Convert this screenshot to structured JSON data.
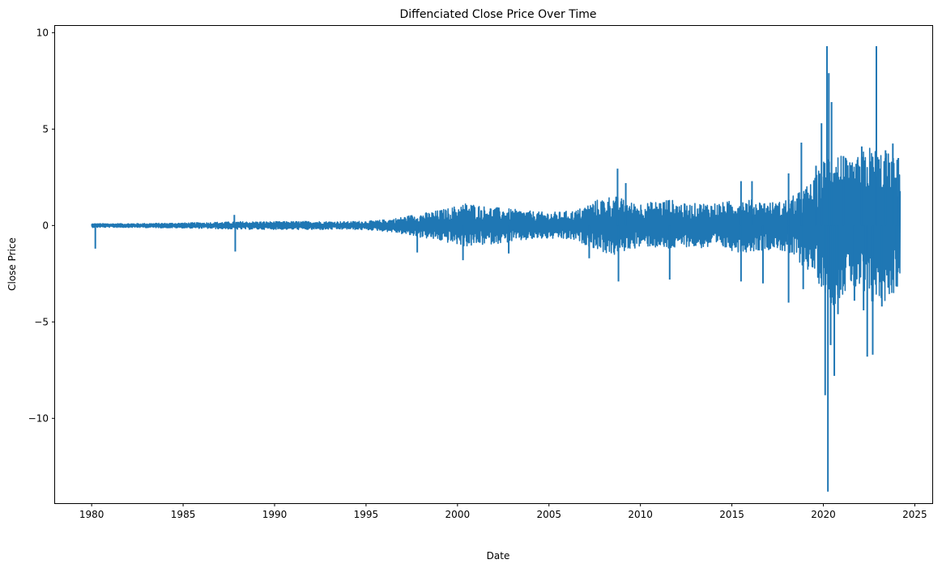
{
  "chart_data": {
    "type": "line",
    "title": "Diffenciated Close Price Over Time",
    "xlabel": "Date",
    "ylabel": "Close Price",
    "xlim": [
      1978.0,
      2026.0
    ],
    "ylim": [
      -14.4,
      10.35
    ],
    "x_ticks": [
      1980,
      1985,
      1990,
      1995,
      2000,
      2005,
      2010,
      2015,
      2020,
      2025
    ],
    "y_ticks": [
      10,
      5,
      0,
      -5,
      -10
    ],
    "y_tick_labels": [
      "10",
      "5",
      "0",
      "−5",
      "−10"
    ],
    "grid": false,
    "legend": "none",
    "series": [
      {
        "color": "#1f77b4",
        "envelope": {
          "x": [
            1980.0,
            1982.0,
            1984.0,
            1986.0,
            1988.0,
            1990.0,
            1992.0,
            1994.0,
            1995.5,
            1996.5,
            1997.5,
            1998.5,
            1999.5,
            2000.5,
            2001.5,
            2002.5,
            2003.5,
            2004.5,
            2005.5,
            2006.5,
            2007.5,
            2008.5,
            2009.5,
            2010.5,
            2011.5,
            2012.5,
            2013.5,
            2014.5,
            2015.5,
            2016.5,
            2017.5,
            2018.5,
            2019.5,
            2020.5,
            2021.5,
            2022.5,
            2023.5,
            2024.2
          ],
          "upper": [
            0.1,
            0.1,
            0.12,
            0.15,
            0.2,
            0.2,
            0.22,
            0.2,
            0.25,
            0.35,
            0.55,
            0.7,
            0.9,
            1.2,
            1.0,
            0.9,
            0.8,
            0.7,
            0.7,
            0.8,
            1.3,
            1.6,
            1.2,
            1.2,
            1.4,
            1.1,
            1.2,
            1.2,
            1.4,
            1.3,
            1.2,
            1.6,
            2.4,
            4.4,
            3.2,
            4.2,
            3.8,
            3.4
          ],
          "lower": [
            -0.1,
            -0.1,
            -0.12,
            -0.15,
            -0.2,
            -0.2,
            -0.22,
            -0.2,
            -0.25,
            -0.35,
            -0.55,
            -0.7,
            -0.9,
            -1.1,
            -1.0,
            -0.9,
            -0.8,
            -0.7,
            -0.7,
            -0.8,
            -1.2,
            -1.6,
            -1.2,
            -1.1,
            -1.3,
            -1.1,
            -1.2,
            -1.2,
            -1.4,
            -1.3,
            -1.2,
            -1.8,
            -2.6,
            -4.2,
            -3.2,
            -4.3,
            -3.9,
            -3.2
          ]
        },
        "spikes": [
          {
            "x": 1980.2,
            "y": -1.2
          },
          {
            "x": 1987.8,
            "y": 0.55
          },
          {
            "x": 1987.85,
            "y": -1.35
          },
          {
            "x": 1997.8,
            "y": -1.4
          },
          {
            "x": 2000.3,
            "y": -1.8
          },
          {
            "x": 2002.8,
            "y": -1.45
          },
          {
            "x": 2007.2,
            "y": -1.7
          },
          {
            "x": 2008.75,
            "y": 2.95
          },
          {
            "x": 2008.8,
            "y": -2.9
          },
          {
            "x": 2009.2,
            "y": 2.2
          },
          {
            "x": 2011.6,
            "y": -2.8
          },
          {
            "x": 2015.5,
            "y": -2.9
          },
          {
            "x": 2015.5,
            "y": 2.3
          },
          {
            "x": 2016.1,
            "y": 2.3
          },
          {
            "x": 2016.7,
            "y": -3.0
          },
          {
            "x": 2018.1,
            "y": -4.0
          },
          {
            "x": 2018.1,
            "y": 2.7
          },
          {
            "x": 2018.8,
            "y": 4.3
          },
          {
            "x": 2018.9,
            "y": -3.3
          },
          {
            "x": 2019.6,
            "y": 3.1
          },
          {
            "x": 2019.9,
            "y": 5.3
          },
          {
            "x": 2020.1,
            "y": -8.8
          },
          {
            "x": 2020.2,
            "y": 9.3
          },
          {
            "x": 2020.25,
            "y": -13.8
          },
          {
            "x": 2020.3,
            "y": 7.9
          },
          {
            "x": 2020.4,
            "y": -6.2
          },
          {
            "x": 2020.45,
            "y": 6.4
          },
          {
            "x": 2020.6,
            "y": -7.8
          },
          {
            "x": 2020.8,
            "y": -4.6
          },
          {
            "x": 2021.1,
            "y": 3.6
          },
          {
            "x": 2021.7,
            "y": -3.9
          },
          {
            "x": 2022.1,
            "y": 4.1
          },
          {
            "x": 2022.2,
            "y": -4.4
          },
          {
            "x": 2022.4,
            "y": -6.8
          },
          {
            "x": 2022.7,
            "y": -6.7
          },
          {
            "x": 2022.9,
            "y": 9.3
          },
          {
            "x": 2023.2,
            "y": -4.2
          },
          {
            "x": 2023.4,
            "y": 3.9
          },
          {
            "x": 2023.8,
            "y": 4.25
          },
          {
            "x": 2024.0,
            "y": -3.1
          },
          {
            "x": 2024.1,
            "y": 3.5
          }
        ]
      }
    ]
  }
}
